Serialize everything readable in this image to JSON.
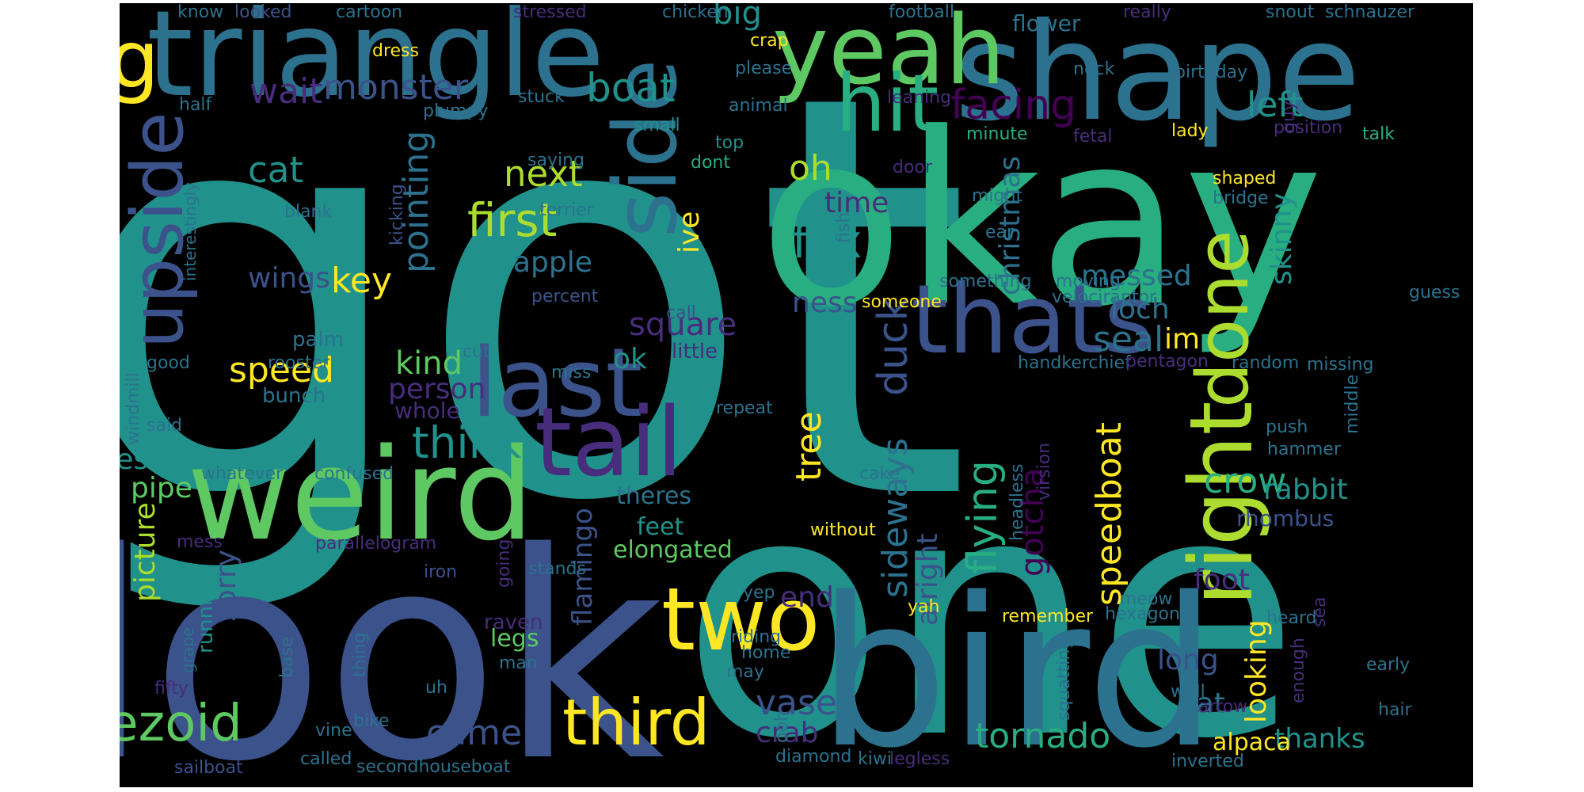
{
  "background": "#000000",
  "palette": {
    "purple": "#440154",
    "indigo": "#472d7b",
    "blue": "#3b528b",
    "steel": "#2c728e",
    "teal": "#21918c",
    "green": "#28ae80",
    "lime": "#5ec962",
    "yellowgreen": "#addc30",
    "yellow": "#fde725"
  },
  "words": [
    {
      "text": "got",
      "color": "#21918c",
      "rot": 0,
      "size": 1.0
    },
    {
      "text": "okay",
      "color": "#28ae80",
      "rot": 0,
      "size": 0.7
    },
    {
      "text": "one",
      "color": "#21918c",
      "rot": 0,
      "size": 0.9
    },
    {
      "text": "look",
      "color": "#3b528b",
      "rot": 0,
      "size": 0.85
    },
    {
      "text": "bird",
      "color": "#2c728e",
      "rot": 0,
      "size": 0.65
    },
    {
      "text": "shape",
      "color": "#2c728e",
      "rot": 0,
      "size": 0.45
    },
    {
      "text": "triangle",
      "color": "#2c728e",
      "rot": 0,
      "size": 0.4
    },
    {
      "text": "weird",
      "color": "#5ec962",
      "rot": 0,
      "size": 0.4
    },
    {
      "text": "yeah",
      "color": "#5ec962",
      "rot": 0,
      "size": 0.3
    },
    {
      "text": "dog",
      "color": "#fde725",
      "rot": 0,
      "size": 0.25
    },
    {
      "text": "hit",
      "color": "#28ae80",
      "rot": 0,
      "size": 0.25
    },
    {
      "text": "thats",
      "color": "#3b528b",
      "rot": 0,
      "size": 0.32
    },
    {
      "text": "last",
      "color": "#3b528b",
      "rot": 0,
      "size": 0.3
    },
    {
      "text": "tail",
      "color": "#472d7b",
      "rot": 0,
      "size": 0.3
    },
    {
      "text": "two",
      "color": "#fde725",
      "rot": 0,
      "size": 0.3
    },
    {
      "text": "side",
      "color": "#2c728e",
      "rot": -90,
      "size": 0.27
    },
    {
      "text": "upside",
      "color": "#3b528b",
      "rot": -90,
      "size": 0.22
    },
    {
      "text": "right",
      "color": "#addc30",
      "rot": -90,
      "size": 0.27
    },
    {
      "text": "done",
      "color": "#addc30",
      "rot": -90,
      "size": 0.22
    },
    {
      "text": "third",
      "color": "#fde725",
      "rot": 0,
      "size": 0.2
    },
    {
      "text": "trapezoid",
      "color": "#5ec962",
      "rot": 0,
      "size": 0.18
    },
    {
      "text": "first",
      "color": "#addc30",
      "rot": 0,
      "size": 0.15
    },
    {
      "text": "fox",
      "color": "#21918c",
      "rot": 0,
      "size": 0.15
    },
    {
      "text": "think",
      "color": "#21918c",
      "rot": 0,
      "size": 0.14
    },
    {
      "text": "facing",
      "color": "#440154",
      "rot": 0,
      "size": 0.14
    },
    {
      "text": "boat",
      "color": "#21918c",
      "rot": 0,
      "size": 0.13
    },
    {
      "text": "monster",
      "color": "#3b528b",
      "rot": 0,
      "size": 0.12
    },
    {
      "text": "wait",
      "color": "#472d7b",
      "rot": 0,
      "size": 0.12
    },
    {
      "text": "big",
      "color": "#21918c",
      "rot": 0,
      "size": 0.11
    },
    {
      "text": "left",
      "color": "#21918c",
      "rot": 0,
      "size": 0.12
    },
    {
      "text": "cat",
      "color": "#21918c",
      "rot": 0,
      "size": 0.12
    },
    {
      "text": "next",
      "color": "#addc30",
      "rot": 0,
      "size": 0.12
    },
    {
      "text": "apple",
      "color": "#2c728e",
      "rot": 0,
      "size": 0.1
    },
    {
      "text": "oh",
      "color": "#addc30",
      "rot": 0,
      "size": 0.12
    },
    {
      "text": "time",
      "color": "#472d7b",
      "rot": 0,
      "size": 0.1
    },
    {
      "text": "ive",
      "color": "#fde725",
      "rot": -90,
      "size": 0.1
    },
    {
      "text": "ness",
      "color": "#3b528b",
      "rot": 0,
      "size": 0.1
    },
    {
      "text": "duck",
      "color": "#3b528b",
      "rot": -90,
      "size": 0.14
    },
    {
      "text": "messed",
      "color": "#2c728e",
      "rot": 0,
      "size": 0.1
    },
    {
      "text": "loch",
      "color": "#2c728e",
      "rot": 0,
      "size": 0.1
    },
    {
      "text": "seal",
      "color": "#2c728e",
      "rot": 0,
      "size": 0.12
    },
    {
      "text": "im",
      "color": "#fde725",
      "rot": 0,
      "size": 0.1
    },
    {
      "text": "skinny",
      "color": "#21918c",
      "rot": -90,
      "size": 0.1
    },
    {
      "text": "christmas",
      "color": "#2c728e",
      "rot": -90,
      "size": 0.1
    },
    {
      "text": "pointing",
      "color": "#2c728e",
      "rot": -90,
      "size": 0.12
    },
    {
      "text": "key",
      "color": "#fde725",
      "rot": 0,
      "size": 0.12
    },
    {
      "text": "wings",
      "color": "#3b528b",
      "rot": 0,
      "size": 0.1
    },
    {
      "text": "square",
      "color": "#472d7b",
      "rot": 0,
      "size": 0.11
    },
    {
      "text": "speed",
      "color": "#fde725",
      "rot": 0,
      "size": 0.12
    },
    {
      "text": "kind",
      "color": "#5ec962",
      "rot": 0,
      "size": 0.11
    },
    {
      "text": "ok",
      "color": "#21918c",
      "rot": 0,
      "size": 0.1
    },
    {
      "text": "person",
      "color": "#472d7b",
      "rot": 0,
      "size": 0.1
    },
    {
      "text": "whole",
      "color": "#472d7b",
      "rot": 0,
      "size": 0.08
    },
    {
      "text": "bunch",
      "color": "#2c728e",
      "rot": 0,
      "size": 0.07
    },
    {
      "text": "palm",
      "color": "#2c728e",
      "rot": 0,
      "size": 0.07
    },
    {
      "text": "little",
      "color": "#472d7b",
      "rot": 0,
      "size": 0.07
    },
    {
      "text": "tree",
      "color": "#fde725",
      "rot": -90,
      "size": 0.12
    },
    {
      "text": "sideways",
      "color": "#2c728e",
      "rot": -90,
      "size": 0.12
    },
    {
      "text": "alright",
      "color": "#3b528b",
      "rot": -90,
      "size": 0.1
    },
    {
      "text": "flying",
      "color": "#28ae80",
      "rot": -90,
      "size": 0.14
    },
    {
      "text": "gotcha",
      "color": "#440154",
      "rot": -90,
      "size": 0.11
    },
    {
      "text": "speedboat",
      "color": "#fde725",
      "rot": -90,
      "size": 0.12
    },
    {
      "text": "crow",
      "color": "#28ae80",
      "rot": 0,
      "size": 0.12
    },
    {
      "text": "rabbit",
      "color": "#21918c",
      "rot": 0,
      "size": 0.1
    },
    {
      "text": "rhombus",
      "color": "#3b528b",
      "rot": 0,
      "size": 0.08
    },
    {
      "text": "yes",
      "color": "#21918c",
      "rot": 0,
      "size": 0.1
    },
    {
      "text": "pipe",
      "color": "#5ec962",
      "rot": 0,
      "size": 0.1
    },
    {
      "text": "theres",
      "color": "#2c728e",
      "rot": 0,
      "size": 0.08
    },
    {
      "text": "feet",
      "color": "#21918c",
      "rot": 0,
      "size": 0.08
    },
    {
      "text": "elongated",
      "color": "#5ec962",
      "rot": 0,
      "size": 0.08
    },
    {
      "text": "flamingo",
      "color": "#3b528b",
      "rot": -90,
      "size": 0.09
    },
    {
      "text": "picture",
      "color": "#addc30",
      "rot": -90,
      "size": 0.1
    },
    {
      "text": "sorry",
      "color": "#3b528b",
      "rot": -90,
      "size": 0.1
    },
    {
      "text": "running",
      "color": "#21918c",
      "rot": -90,
      "size": 0.07
    },
    {
      "text": "end",
      "color": "#472d7b",
      "rot": 0,
      "size": 0.1
    },
    {
      "text": "vase",
      "color": "#3b528b",
      "rot": 0,
      "size": 0.12
    },
    {
      "text": "crab",
      "color": "#472d7b",
      "rot": 0,
      "size": 0.1
    },
    {
      "text": "camel",
      "color": "#3b528b",
      "rot": 0,
      "size": 0.12
    },
    {
      "text": "foot",
      "color": "#472d7b",
      "rot": 0,
      "size": 0.1
    },
    {
      "text": "long",
      "color": "#3b528b",
      "rot": 0,
      "size": 0.1
    },
    {
      "text": "fat",
      "color": "#2c728e",
      "rot": 0,
      "size": 0.1
    },
    {
      "text": "looking",
      "color": "#fde725",
      "rot": -90,
      "size": 0.1
    },
    {
      "text": "thanks",
      "color": "#21918c",
      "rot": 0,
      "size": 0.1
    },
    {
      "text": "alpaca",
      "color": "#fde725",
      "rot": 0,
      "size": 0.08
    },
    {
      "text": "tornado",
      "color": "#28ae80",
      "rot": 0,
      "size": 0.12
    },
    {
      "text": "raven",
      "color": "#472d7b",
      "rot": 0,
      "size": 0.07
    },
    {
      "text": "legs",
      "color": "#5ec962",
      "rot": 0,
      "size": 0.08
    },
    {
      "text": "man",
      "color": "#2c728e",
      "rot": 0,
      "size": 0.06
    },
    {
      "text": "know",
      "color": "#2c728e",
      "rot": 0,
      "size": 0.06
    },
    {
      "text": "looked",
      "color": "#3b528b",
      "rot": 0,
      "size": 0.06
    },
    {
      "text": "cartoon",
      "color": "#2c728e",
      "rot": 0,
      "size": 0.06
    },
    {
      "text": "stressed",
      "color": "#472d7b",
      "rot": 0,
      "size": 0.06
    },
    {
      "text": "chicken",
      "color": "#2c728e",
      "rot": 0,
      "size": 0.06
    },
    {
      "text": "football",
      "color": "#2c728e",
      "rot": 0,
      "size": 0.06
    },
    {
      "text": "flower",
      "color": "#2c728e",
      "rot": 0,
      "size": 0.07
    },
    {
      "text": "really",
      "color": "#472d7b",
      "rot": 0,
      "size": 0.06
    },
    {
      "text": "snout",
      "color": "#2c728e",
      "rot": 0,
      "size": 0.06
    },
    {
      "text": "schnauzer",
      "color": "#2c728e",
      "rot": 0,
      "size": 0.06
    },
    {
      "text": "dress",
      "color": "#fde725",
      "rot": 0,
      "size": 0.06
    },
    {
      "text": "crap",
      "color": "#fde725",
      "rot": 0,
      "size": 0.06
    },
    {
      "text": "birthday",
      "color": "#2c728e",
      "rot": 0,
      "size": 0.06
    },
    {
      "text": "please",
      "color": "#2c728e",
      "rot": 0,
      "size": 0.06
    },
    {
      "text": "neck",
      "color": "#2c728e",
      "rot": 0,
      "size": 0.06
    },
    {
      "text": "half",
      "color": "#2c728e",
      "rot": 0,
      "size": 0.06
    },
    {
      "text": "stuck",
      "color": "#2c728e",
      "rot": 0,
      "size": 0.06
    },
    {
      "text": "animal",
      "color": "#2c728e",
      "rot": 0,
      "size": 0.06
    },
    {
      "text": "plumpy",
      "color": "#2c728e",
      "rot": 0,
      "size": 0.06
    },
    {
      "text": "small",
      "color": "#21918c",
      "rot": 0,
      "size": 0.06
    },
    {
      "text": "leaning",
      "color": "#472d7b",
      "rot": 0,
      "size": 0.06
    },
    {
      "text": "top",
      "color": "#21918c",
      "rot": 0,
      "size": 0.06
    },
    {
      "text": "minute",
      "color": "#28ae80",
      "rot": 0,
      "size": 0.06
    },
    {
      "text": "lady",
      "color": "#fde725",
      "rot": 0,
      "size": 0.06
    },
    {
      "text": "guy",
      "color": "#472d7b",
      "rot": -90,
      "size": 0.06
    },
    {
      "text": "position",
      "color": "#472d7b",
      "rot": 0,
      "size": 0.06
    },
    {
      "text": "saying",
      "color": "#2c728e",
      "rot": 0,
      "size": 0.06
    },
    {
      "text": "dont",
      "color": "#28ae80",
      "rot": 0,
      "size": 0.06
    },
    {
      "text": "door",
      "color": "#472d7b",
      "rot": 0,
      "size": 0.06
    },
    {
      "text": "fetal",
      "color": "#472d7b",
      "rot": 0,
      "size": 0.06
    },
    {
      "text": "talk",
      "color": "#28ae80",
      "rot": 0,
      "size": 0.06
    },
    {
      "text": "blank",
      "color": "#2c728e",
      "rot": 0,
      "size": 0.06
    },
    {
      "text": "terrier",
      "color": "#2c728e",
      "rot": 0,
      "size": 0.06
    },
    {
      "text": "might",
      "color": "#2c728e",
      "rot": 0,
      "size": 0.06
    },
    {
      "text": "shaped",
      "color": "#fde725",
      "rot": 0,
      "size": 0.06
    },
    {
      "text": "bridge",
      "color": "#2c728e",
      "rot": 0,
      "size": 0.06
    },
    {
      "text": "interestingly",
      "color": "#2c728e",
      "rot": -90,
      "size": 0.06
    },
    {
      "text": "kicking",
      "color": "#3b528b",
      "rot": -90,
      "size": 0.06
    },
    {
      "text": "fish",
      "color": "#2c728e",
      "rot": -90,
      "size": 0.06
    },
    {
      "text": "ear",
      "color": "#2c728e",
      "rot": 0,
      "size": 0.06
    },
    {
      "text": "something",
      "color": "#2c728e",
      "rot": 0,
      "size": 0.06
    },
    {
      "text": "moving",
      "color": "#2c728e",
      "rot": 0,
      "size": 0.06
    },
    {
      "text": "velociraptor",
      "color": "#2c728e",
      "rot": 0,
      "size": 0.06
    },
    {
      "text": "percent",
      "color": "#3b528b",
      "rot": 0,
      "size": 0.06
    },
    {
      "text": "someone",
      "color": "#fde725",
      "rot": 0,
      "size": 0.06
    },
    {
      "text": "guess",
      "color": "#2c728e",
      "rot": 0,
      "size": 0.06
    },
    {
      "text": "call",
      "color": "#3b528b",
      "rot": 0,
      "size": 0.06
    },
    {
      "text": "windmill",
      "color": "#2c728e",
      "rot": -90,
      "size": 0.06
    },
    {
      "text": "cut",
      "color": "#2c728e",
      "rot": 0,
      "size": 0.06
    },
    {
      "text": "good",
      "color": "#2c728e",
      "rot": 0,
      "size": 0.06
    },
    {
      "text": "rooster",
      "color": "#2c728e",
      "rot": 0,
      "size": 0.06
    },
    {
      "text": "miss",
      "color": "#2c728e",
      "rot": 0,
      "size": 0.06
    },
    {
      "text": "handkerchief",
      "color": "#2c728e",
      "rot": 0,
      "size": 0.06
    },
    {
      "text": "pentagon",
      "color": "#472d7b",
      "rot": 0,
      "size": 0.06
    },
    {
      "text": "random",
      "color": "#2c728e",
      "rot": 0,
      "size": 0.06
    },
    {
      "text": "missing",
      "color": "#2c728e",
      "rot": 0,
      "size": 0.06
    },
    {
      "text": "said",
      "color": "#2c728e",
      "rot": 0,
      "size": 0.06
    },
    {
      "text": "repeat",
      "color": "#2c728e",
      "rot": 0,
      "size": 0.06
    },
    {
      "text": "middle",
      "color": "#2c728e",
      "rot": -90,
      "size": 0.06
    },
    {
      "text": "push",
      "color": "#2c728e",
      "rot": 0,
      "size": 0.06
    },
    {
      "text": "hammer",
      "color": "#2c728e",
      "rot": 0,
      "size": 0.06
    },
    {
      "text": "whatever",
      "color": "#2c728e",
      "rot": 0,
      "size": 0.06
    },
    {
      "text": "confused",
      "color": "#2c728e",
      "rot": 0,
      "size": 0.06
    },
    {
      "text": "virsion",
      "color": "#472d7b",
      "rot": -90,
      "size": 0.06
    },
    {
      "text": "cake",
      "color": "#2c728e",
      "rot": 0,
      "size": 0.06
    },
    {
      "text": "headless",
      "color": "#2c728e",
      "rot": -90,
      "size": 0.06
    },
    {
      "text": "without",
      "color": "#fde725",
      "rot": 0,
      "size": 0.06
    },
    {
      "text": "mess",
      "color": "#472d7b",
      "rot": 0,
      "size": 0.06
    },
    {
      "text": "parallelogram",
      "color": "#472d7b",
      "rot": 0,
      "size": 0.06
    },
    {
      "text": "going",
      "color": "#472d7b",
      "rot": -90,
      "size": 0.06
    },
    {
      "text": "stands",
      "color": "#2c728e",
      "rot": 0,
      "size": 0.06
    },
    {
      "text": "iron",
      "color": "#3b528b",
      "rot": 0,
      "size": 0.06
    },
    {
      "text": "yep",
      "color": "#2c728e",
      "rot": 0,
      "size": 0.06
    },
    {
      "text": "yah",
      "color": "#fde725",
      "rot": 0,
      "size": 0.06
    },
    {
      "text": "remember",
      "color": "#fde725",
      "rot": 0,
      "size": 0.06
    },
    {
      "text": "meow",
      "color": "#2c728e",
      "rot": 0,
      "size": 0.06
    },
    {
      "text": "hexagon",
      "color": "#2c728e",
      "rot": 0,
      "size": 0.06
    },
    {
      "text": "heard",
      "color": "#2c728e",
      "rot": 0,
      "size": 0.06
    },
    {
      "text": "sea",
      "color": "#472d7b",
      "rot": -90,
      "size": 0.06
    },
    {
      "text": "riding",
      "color": "#2c728e",
      "rot": 0,
      "size": 0.06
    },
    {
      "text": "home",
      "color": "#2c728e",
      "rot": 0,
      "size": 0.06
    },
    {
      "text": "thing",
      "color": "#2c728e",
      "rot": -90,
      "size": 0.06
    },
    {
      "text": "base",
      "color": "#2c728e",
      "rot": -90,
      "size": 0.06
    },
    {
      "text": "grape",
      "color": "#2c728e",
      "rot": -90,
      "size": 0.06
    },
    {
      "text": "fifty",
      "color": "#472d7b",
      "rot": 0,
      "size": 0.06
    },
    {
      "text": "may",
      "color": "#2c728e",
      "rot": 0,
      "size": 0.06
    },
    {
      "text": "uh",
      "color": "#2c728e",
      "rot": 0,
      "size": 0.06
    },
    {
      "text": "squatting",
      "color": "#2c728e",
      "rot": -90,
      "size": 0.06
    },
    {
      "text": "enough",
      "color": "#472d7b",
      "rot": -90,
      "size": 0.06
    },
    {
      "text": "early",
      "color": "#2c728e",
      "rot": 0,
      "size": 0.06
    },
    {
      "text": "well",
      "color": "#2c728e",
      "rot": 0,
      "size": 0.06
    },
    {
      "text": "arrow",
      "color": "#472d7b",
      "rot": 0,
      "size": 0.06
    },
    {
      "text": "hair",
      "color": "#2c728e",
      "rot": 0,
      "size": 0.06
    },
    {
      "text": "vine",
      "color": "#2c728e",
      "rot": 0,
      "size": 0.06
    },
    {
      "text": "bike",
      "color": "#2c728e",
      "rot": 0,
      "size": 0.06
    },
    {
      "text": "ooh",
      "color": "#2c728e",
      "rot": -90,
      "size": 0.06
    },
    {
      "text": "sailboat",
      "color": "#3b528b",
      "rot": 0,
      "size": 0.06
    },
    {
      "text": "called",
      "color": "#2c728e",
      "rot": 0,
      "size": 0.06
    },
    {
      "text": "secondhouseboat",
      "color": "#2c728e",
      "rot": 0,
      "size": 0.06
    },
    {
      "text": "diamond",
      "color": "#2c728e",
      "rot": 0,
      "size": 0.06
    },
    {
      "text": "kiwi",
      "color": "#2c728e",
      "rot": 0,
      "size": 0.06
    },
    {
      "text": "legless",
      "color": "#472d7b",
      "rot": 0,
      "size": 0.06
    },
    {
      "text": "inverted",
      "color": "#2c728e",
      "rot": 0,
      "size": 0.06
    }
  ]
}
